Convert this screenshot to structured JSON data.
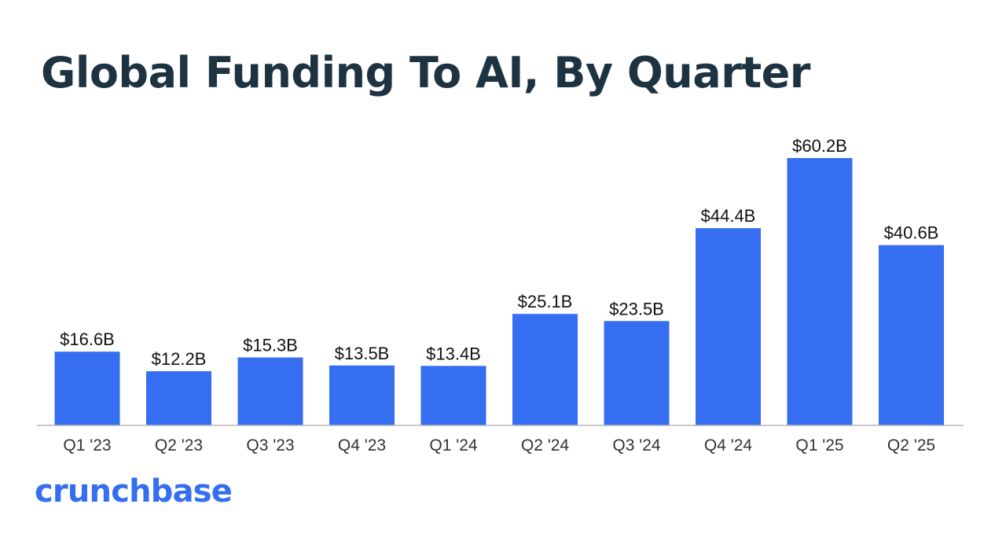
{
  "chart_data": {
    "type": "bar",
    "title": "Global Funding To AI, By Quarter",
    "categories": [
      "Q1 '23",
      "Q2 '23",
      "Q3 '23",
      "Q4 '23",
      "Q1 '24",
      "Q2 '24",
      "Q3 '24",
      "Q4 '24",
      "Q1 '25",
      "Q2 '25"
    ],
    "values": [
      16.6,
      12.2,
      15.3,
      13.5,
      13.4,
      25.1,
      23.5,
      44.4,
      60.2,
      40.6
    ],
    "data_labels": [
      "$16.6B",
      "$12.2B",
      "$15.3B",
      "$13.5B",
      "$13.4B",
      "$25.1B",
      "$23.5B",
      "$44.4B",
      "$60.2B",
      "$40.6B"
    ],
    "units": "USD billions",
    "ylim": [
      0,
      60.2
    ],
    "grid": false,
    "legend": "none",
    "bar_color": "#356ef0"
  },
  "brand": {
    "logo_text": "crunchbase",
    "logo_color": "#356ef0"
  },
  "colors": {
    "title": "#1d3342"
  }
}
